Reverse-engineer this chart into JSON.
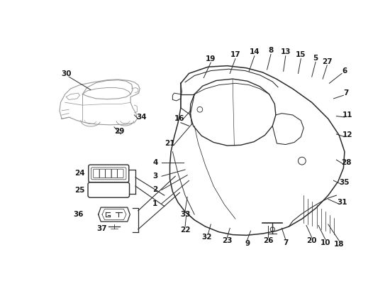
{
  "bg_color": "#ffffff",
  "line_color": "#2a2a2a",
  "light_line_color": "#999999",
  "label_color": "#1a1a1a",
  "fig_width": 5.5,
  "fig_height": 4.0,
  "dpi": 100
}
